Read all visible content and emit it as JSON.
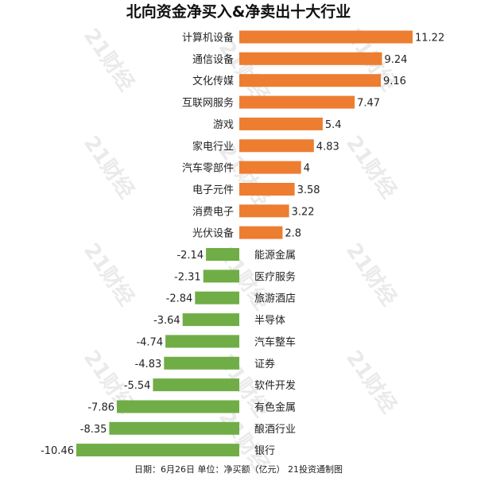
{
  "chart_data": {
    "type": "bar",
    "orientation": "horizontal",
    "title": "北向资金净买入&净卖出十大行业",
    "categories": [
      "计算机设备",
      "通信设备",
      "文化传媒",
      "互联网服务",
      "游戏",
      "家电行业",
      "汽车零部件",
      "电子元件",
      "消费电子",
      "光伏设备",
      "能源金属",
      "医疗服务",
      "旅游酒店",
      "半导体",
      "汽车整车",
      "证券",
      "软件开发",
      "有色金属",
      "酿酒行业",
      "银行"
    ],
    "values": [
      11.22,
      9.24,
      9.16,
      7.47,
      5.4,
      4.83,
      4,
      3.58,
      3.22,
      2.8,
      -2.14,
      -2.31,
      -2.84,
      -3.64,
      -4.74,
      -4.83,
      -5.54,
      -7.86,
      -8.35,
      -10.46
    ],
    "value_labels": [
      "11.22",
      "9.24",
      "9.16",
      "7.47",
      "5.4",
      "4.83",
      "4",
      "3.58",
      "3.22",
      "2.8",
      "-2.14",
      "-2.31",
      "-2.84",
      "-3.64",
      "-4.74",
      "-4.83",
      "-5.54",
      "-7.86",
      "-8.35",
      "-10.46"
    ],
    "xlim": [
      -10.46,
      11.22
    ],
    "grid": false,
    "legend": "none",
    "footer": "日期：6月26日 单位：净买额（亿元） 21投资通制图",
    "watermark": "21财经",
    "colors": {
      "positive": "#ed7d31",
      "negative": "#70ad47"
    }
  }
}
